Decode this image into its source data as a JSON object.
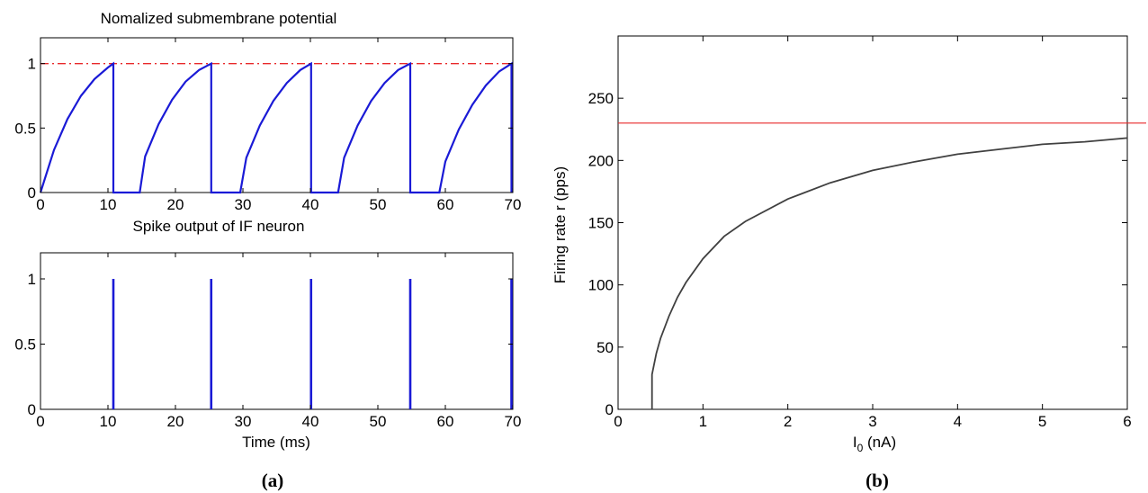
{
  "chart_data": [
    {
      "type": "line",
      "title": "Nomalized submembrane potential",
      "xlabel": "",
      "ylabel": "",
      "xlim": [
        0,
        70
      ],
      "ylim": [
        0,
        1.2
      ],
      "xticks": [
        0,
        10,
        20,
        30,
        40,
        50,
        60,
        70
      ],
      "yticks": [
        0,
        0.5,
        1
      ],
      "ytick_labels": [
        "0",
        "0.5",
        "1"
      ],
      "threshold": {
        "y": 1,
        "color": "#e8282a",
        "style": "dash-dot"
      },
      "series_color": "#1a1ad6",
      "series": [
        {
          "x": [
            0,
            2,
            4,
            6,
            8,
            10,
            10.8,
            10.8,
            14.7,
            15.5,
            17.5,
            19.5,
            21.5,
            23.5,
            25.3,
            25.3,
            29.6,
            30.5,
            32.5,
            34.5,
            36.5,
            38.5,
            40.1,
            40.1,
            44.1,
            45,
            47,
            49,
            51,
            53,
            54.8,
            54.8,
            59.1,
            60,
            62,
            64,
            66,
            68,
            69.8,
            69.8
          ],
          "y": [
            0,
            0.33,
            0.57,
            0.75,
            0.88,
            0.97,
            1.0,
            0,
            0,
            0.28,
            0.53,
            0.72,
            0.86,
            0.95,
            1.0,
            0,
            0,
            0.27,
            0.52,
            0.71,
            0.85,
            0.95,
            1.0,
            0,
            0,
            0.27,
            0.52,
            0.71,
            0.85,
            0.95,
            1.0,
            0,
            0,
            0.24,
            0.49,
            0.68,
            0.83,
            0.94,
            1.0,
            0
          ]
        }
      ]
    },
    {
      "type": "line",
      "title": "Spike output of IF neuron",
      "xlabel": "Time (ms)",
      "ylabel": "",
      "xlim": [
        0,
        70
      ],
      "ylim": [
        0,
        1.2
      ],
      "xticks": [
        0,
        10,
        20,
        30,
        40,
        50,
        60,
        70
      ],
      "yticks": [
        0,
        0.5,
        1
      ],
      "ytick_labels": [
        "0",
        "0.5",
        "1"
      ],
      "series_color": "#1a1ad6",
      "spikes": [
        10.8,
        25.3,
        40.1,
        54.8,
        69.8
      ],
      "spike_height": 1
    },
    {
      "type": "line",
      "title": "",
      "xlabel": "I",
      "xlabel_sub": "0",
      "xlabel_unit": " (nA)",
      "ylabel": "Firing rate r (pps)",
      "xlim": [
        0,
        6
      ],
      "ylim": [
        0,
        300
      ],
      "xticks": [
        0,
        1,
        2,
        3,
        4,
        5,
        6
      ],
      "yticks": [
        0,
        50,
        100,
        150,
        200,
        250
      ],
      "asymptote": {
        "y": 230,
        "color": "#e8282a"
      },
      "series_color": "#404040",
      "series": [
        {
          "x": [
            0.4,
            0.4,
            0.45,
            0.5,
            0.6,
            0.7,
            0.8,
            1.0,
            1.25,
            1.5,
            2.0,
            2.5,
            3.0,
            3.5,
            4.0,
            4.5,
            5.0,
            5.5,
            6.0
          ],
          "y": [
            0,
            28,
            45,
            57,
            75,
            90,
            102,
            121,
            139,
            151,
            169,
            182,
            192,
            199,
            205,
            209,
            213,
            215,
            218
          ]
        }
      ]
    }
  ],
  "panel_labels": {
    "a": "(a)",
    "b": "(b)"
  }
}
